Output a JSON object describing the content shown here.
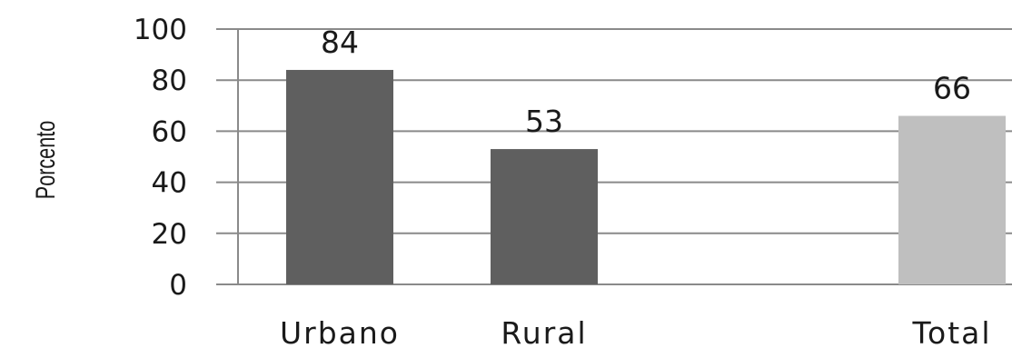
{
  "chart_data": {
    "type": "bar",
    "categories": [
      "Urbano",
      "Rural",
      "",
      "Total"
    ],
    "values": [
      84,
      53,
      null,
      66
    ],
    "data_labels": [
      "84",
      "53",
      "",
      "66"
    ],
    "bar_colors": [
      "#5f5f5f",
      "#5f5f5f",
      "#5f5f5f",
      "#bfbfbf"
    ],
    "title": "",
    "xlabel": "",
    "ylabel": "Porcento",
    "ylim": [
      0,
      100
    ],
    "yticks": [
      0,
      20,
      40,
      60,
      80,
      100
    ],
    "grid": true,
    "legend": "none"
  }
}
